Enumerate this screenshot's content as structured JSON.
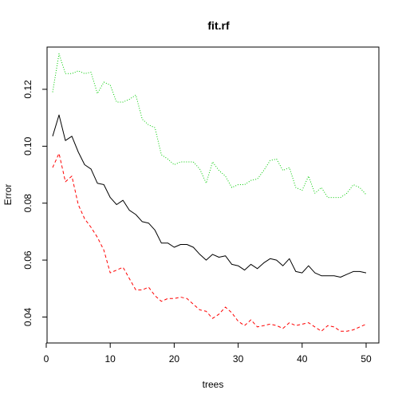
{
  "chart_data": {
    "type": "line",
    "title": "fit.rf",
    "xlabel": "trees",
    "ylabel": "Error",
    "xlim": [
      1,
      50
    ],
    "ylim": [
      0.032,
      0.134
    ],
    "x_ticks": [
      0,
      10,
      20,
      30,
      40,
      50
    ],
    "y_ticks": [
      0.04,
      0.06,
      0.08,
      0.1,
      0.12
    ],
    "x_tick_labels": [
      "0",
      "10",
      "20",
      "30",
      "40",
      "50"
    ],
    "y_tick_labels": [
      "0.04",
      "0.06",
      "0.08",
      "0.10",
      "0.12"
    ],
    "grid": false,
    "legend": "none",
    "x": [
      1,
      2,
      3,
      4,
      5,
      6,
      7,
      8,
      9,
      10,
      11,
      12,
      13,
      14,
      15,
      16,
      17,
      18,
      19,
      20,
      21,
      22,
      23,
      24,
      25,
      26,
      27,
      28,
      29,
      30,
      31,
      32,
      33,
      34,
      35,
      36,
      37,
      38,
      39,
      40,
      41,
      42,
      43,
      44,
      45,
      46,
      47,
      48,
      49,
      50
    ],
    "series": [
      {
        "style": "solid",
        "color": "#000000",
        "values": [
          0.1035,
          0.111,
          0.102,
          0.1035,
          0.098,
          0.0935,
          0.092,
          0.087,
          0.0865,
          0.082,
          0.0795,
          0.081,
          0.0775,
          0.076,
          0.0735,
          0.073,
          0.0705,
          0.066,
          0.066,
          0.0645,
          0.0655,
          0.0655,
          0.0645,
          0.062,
          0.06,
          0.062,
          0.061,
          0.0615,
          0.0585,
          0.058,
          0.0565,
          0.0585,
          0.057,
          0.059,
          0.0605,
          0.06,
          0.058,
          0.0605,
          0.056,
          0.0555,
          0.058,
          0.0555,
          0.0545,
          0.0545,
          0.0545,
          0.054,
          0.055,
          0.056,
          0.056,
          0.0555
        ]
      },
      {
        "style": "dashed",
        "color": "#ff0000",
        "values": [
          0.0925,
          0.0975,
          0.0875,
          0.0895,
          0.0795,
          0.0745,
          0.0715,
          0.068,
          0.0635,
          0.0555,
          0.0565,
          0.0575,
          0.0535,
          0.0495,
          0.0495,
          0.0505,
          0.0475,
          0.0455,
          0.0465,
          0.0465,
          0.047,
          0.0465,
          0.0445,
          0.0425,
          0.042,
          0.0395,
          0.041,
          0.0435,
          0.0415,
          0.0385,
          0.037,
          0.039,
          0.0365,
          0.037,
          0.0375,
          0.037,
          0.036,
          0.038,
          0.037,
          0.0375,
          0.038,
          0.0365,
          0.035,
          0.037,
          0.0365,
          0.035,
          0.035,
          0.0355,
          0.0365,
          0.0375
        ]
      },
      {
        "style": "dotted",
        "color": "#00cc00",
        "values": [
          0.119,
          0.1325,
          0.1255,
          0.1255,
          0.1265,
          0.1255,
          0.126,
          0.1185,
          0.1225,
          0.1215,
          0.1155,
          0.1155,
          0.1165,
          0.118,
          0.1095,
          0.1075,
          0.1065,
          0.097,
          0.0955,
          0.0935,
          0.0945,
          0.0945,
          0.0945,
          0.092,
          0.087,
          0.0945,
          0.0915,
          0.0895,
          0.0855,
          0.0865,
          0.0865,
          0.088,
          0.0885,
          0.0915,
          0.095,
          0.0955,
          0.0915,
          0.0925,
          0.0855,
          0.0845,
          0.0895,
          0.0835,
          0.0855,
          0.082,
          0.082,
          0.082,
          0.0835,
          0.0865,
          0.0855,
          0.083
        ]
      }
    ]
  }
}
